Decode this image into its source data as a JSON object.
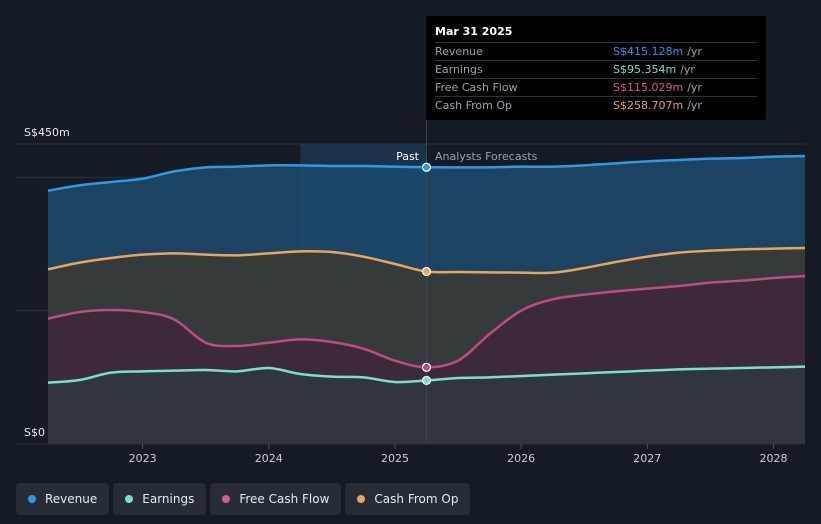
{
  "chart_data": {
    "type": "area",
    "y_axis": {
      "top_label": "S$450m",
      "bottom_label": "S$0",
      "ylim": [
        0,
        450
      ]
    },
    "x_axis": {
      "ticks": [
        "2023",
        "2024",
        "2025",
        "2026",
        "2027",
        "2028"
      ],
      "xlim": [
        2022.25,
        2028.25
      ]
    },
    "divider": {
      "x": 2025.25,
      "past_label": "Past",
      "forecast_label": "Analysts Forecasts"
    },
    "highlight_band": [
      2024.25,
      2025.25
    ],
    "series": [
      {
        "name": "Revenue",
        "color": "#2d9ae8",
        "fill": "#1d4a6c",
        "points": [
          [
            2022.25,
            380
          ],
          [
            2022.5,
            388
          ],
          [
            2022.75,
            393
          ],
          [
            2023,
            398
          ],
          [
            2023.25,
            409
          ],
          [
            2023.5,
            415
          ],
          [
            2023.75,
            416
          ],
          [
            2024,
            418
          ],
          [
            2024.25,
            418
          ],
          [
            2024.5,
            417
          ],
          [
            2024.75,
            417
          ],
          [
            2025,
            416
          ],
          [
            2025.25,
            415.128
          ],
          [
            2025.5,
            415
          ],
          [
            2025.75,
            415
          ],
          [
            2026,
            416
          ],
          [
            2026.25,
            416
          ],
          [
            2026.5,
            418
          ],
          [
            2026.75,
            421
          ],
          [
            2027,
            424
          ],
          [
            2027.25,
            426
          ],
          [
            2027.5,
            428
          ],
          [
            2027.75,
            429
          ],
          [
            2028,
            431
          ],
          [
            2028.25,
            432
          ]
        ]
      },
      {
        "name": "Cash From Op",
        "color": "#e9a55b",
        "fill": "#3a3934",
        "points": [
          [
            2022.25,
            262
          ],
          [
            2022.5,
            272
          ],
          [
            2022.75,
            279
          ],
          [
            2023,
            284
          ],
          [
            2023.25,
            286
          ],
          [
            2023.5,
            284
          ],
          [
            2023.75,
            283
          ],
          [
            2024,
            286
          ],
          [
            2024.25,
            289
          ],
          [
            2024.5,
            288
          ],
          [
            2024.75,
            281
          ],
          [
            2025,
            270
          ],
          [
            2025.25,
            258.707
          ],
          [
            2025.5,
            258
          ],
          [
            2025.75,
            257.5
          ],
          [
            2026,
            257
          ],
          [
            2026.25,
            257
          ],
          [
            2026.5,
            264
          ],
          [
            2026.75,
            273
          ],
          [
            2027,
            281
          ],
          [
            2027.25,
            287
          ],
          [
            2027.5,
            290
          ],
          [
            2027.75,
            292
          ],
          [
            2028,
            293
          ],
          [
            2028.25,
            294
          ]
        ]
      },
      {
        "name": "Free Cash Flow",
        "color": "#c04b80",
        "fill": "#3d2838",
        "points": [
          [
            2022.25,
            188
          ],
          [
            2022.5,
            198
          ],
          [
            2022.75,
            201
          ],
          [
            2023,
            198
          ],
          [
            2023.25,
            187
          ],
          [
            2023.5,
            152
          ],
          [
            2023.75,
            147
          ],
          [
            2024,
            152
          ],
          [
            2024.25,
            157
          ],
          [
            2024.5,
            153
          ],
          [
            2024.75,
            143
          ],
          [
            2025,
            125
          ],
          [
            2025.25,
            115.029
          ],
          [
            2025.5,
            125
          ],
          [
            2025.75,
            165
          ],
          [
            2026,
            200
          ],
          [
            2026.25,
            217
          ],
          [
            2026.5,
            224
          ],
          [
            2026.75,
            229
          ],
          [
            2027,
            233
          ],
          [
            2027.25,
            237
          ],
          [
            2027.5,
            242
          ],
          [
            2027.75,
            245
          ],
          [
            2028,
            249
          ],
          [
            2028.25,
            252
          ]
        ]
      },
      {
        "name": "Earnings",
        "color": "#79e0cd",
        "fill": "#2f3840",
        "points": [
          [
            2022.25,
            92
          ],
          [
            2022.5,
            96
          ],
          [
            2022.75,
            107
          ],
          [
            2023,
            109
          ],
          [
            2023.25,
            110
          ],
          [
            2023.5,
            111
          ],
          [
            2023.75,
            109
          ],
          [
            2024,
            114
          ],
          [
            2024.25,
            105
          ],
          [
            2024.5,
            101
          ],
          [
            2024.75,
            100
          ],
          [
            2025,
            93
          ],
          [
            2025.25,
            95.354
          ],
          [
            2025.5,
            99
          ],
          [
            2025.75,
            100
          ],
          [
            2026,
            102
          ],
          [
            2026.25,
            104
          ],
          [
            2026.5,
            106
          ],
          [
            2026.75,
            108
          ],
          [
            2027,
            110
          ],
          [
            2027.25,
            112
          ],
          [
            2027.5,
            113
          ],
          [
            2027.75,
            114
          ],
          [
            2028,
            115
          ],
          [
            2028.25,
            116
          ]
        ]
      }
    ]
  },
  "tooltip": {
    "date": "Mar 31 2025",
    "rows": [
      {
        "name": "Revenue",
        "value": "S$415.128m",
        "unit": "/yr",
        "color": "#2d9ae8"
      },
      {
        "name": "Earnings",
        "value": "S$95.354m",
        "unit": "/yr",
        "color": "#79e0cd"
      },
      {
        "name": "Free Cash Flow",
        "value": "S$115.029m",
        "unit": "/yr",
        "color": "#d55b92"
      },
      {
        "name": "Cash From Op",
        "value": "S$258.707m",
        "unit": "/yr",
        "color": "#e9a55b"
      }
    ]
  },
  "legend": [
    {
      "label": "Revenue",
      "color": "#2d9ae8"
    },
    {
      "label": "Earnings",
      "color": "#79e0cd"
    },
    {
      "label": "Free Cash Flow",
      "color": "#d55b92"
    },
    {
      "label": "Cash From Op",
      "color": "#e9a55b"
    }
  ]
}
